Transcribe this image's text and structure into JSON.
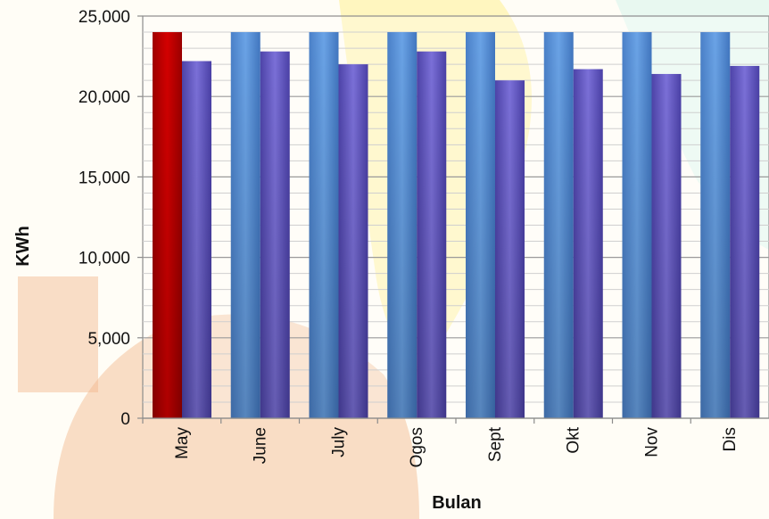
{
  "chart_data": {
    "type": "bar",
    "xlabel": "Bulan",
    "ylabel": "KWh",
    "categories": [
      "May",
      "June",
      "July",
      "Ogos",
      "Sept",
      "Okt",
      "Nov",
      "Dis"
    ],
    "series": [
      {
        "values": [
          24000,
          24000,
          24000,
          24000,
          24000,
          24000,
          24000,
          24000
        ]
      },
      {
        "values": [
          22200,
          22800,
          22000,
          22800,
          21000,
          21700,
          21400,
          21900
        ]
      }
    ],
    "highlight": {
      "series": 0,
      "index": 0,
      "color": "#c00000"
    },
    "colors": [
      "#5590d6",
      "#6a5fc8"
    ],
    "ylim": [
      0,
      25000
    ],
    "yticks": [
      0,
      5000,
      10000,
      15000,
      20000,
      25000
    ],
    "ytick_labels": [
      "0",
      "5,000",
      "10,000",
      "15,000",
      "20,000",
      "25,000"
    ],
    "grid": true,
    "legend": "none"
  }
}
